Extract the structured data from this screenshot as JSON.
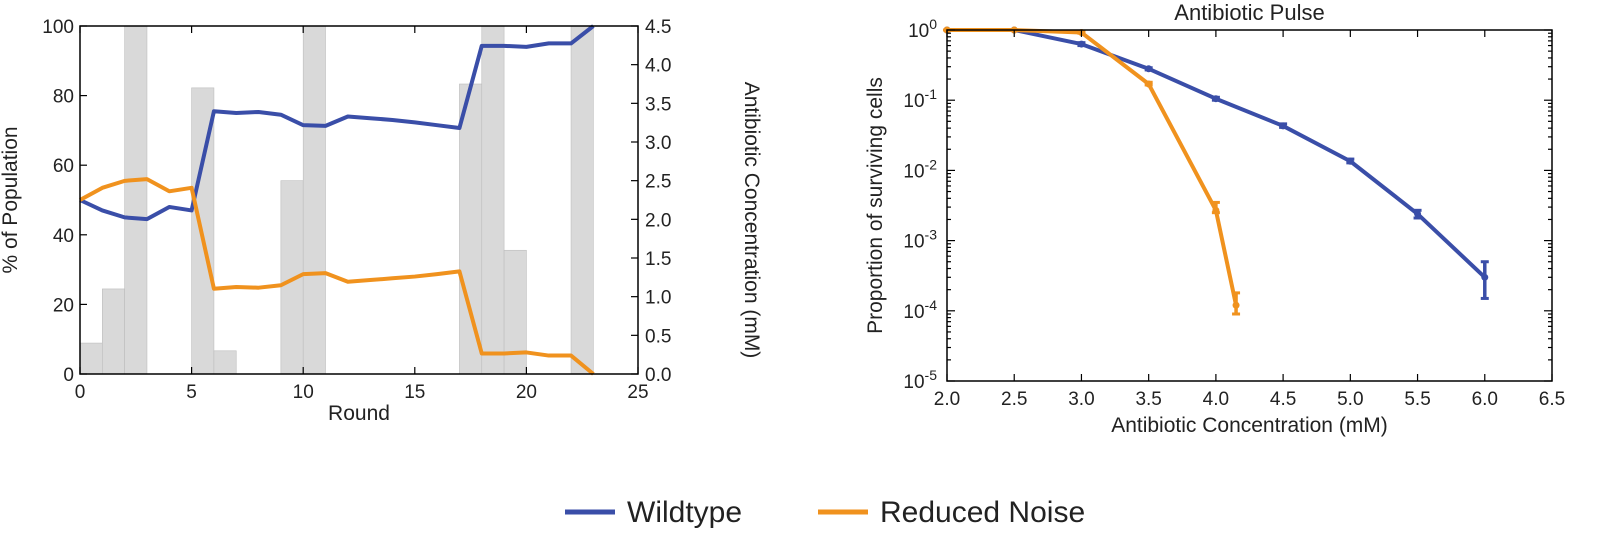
{
  "colors": {
    "wildtype": "#3a4ea8",
    "reduced_noise": "#f0921e",
    "bars": "#d9d9d9",
    "bar_edge": "#bdbdbd"
  },
  "legend": [
    {
      "name": "Wildtype",
      "color": "#3a4ea8"
    },
    {
      "name": "Reduced Noise",
      "color": "#f0921e"
    }
  ],
  "chart_data": [
    {
      "type": "line",
      "title": "",
      "xlabel": "Round",
      "ylabel": "% of Population",
      "y2label": "Antibiotic Concentration (mM)",
      "xlim": [
        0,
        25
      ],
      "ylim": [
        0,
        100
      ],
      "y2lim": [
        0,
        4.5
      ],
      "xticks": [
        "0",
        "5",
        "10",
        "15",
        "20",
        "25"
      ],
      "yticks": [
        "0",
        "20",
        "40",
        "60",
        "80",
        "100"
      ],
      "y2ticks": [
        "0.0",
        "0.5",
        "1.0",
        "1.5",
        "2.0",
        "2.5",
        "3.0",
        "3.5",
        "4.0",
        "4.5"
      ],
      "grid": false,
      "bars": {
        "axis": "y2",
        "rounds": [
          0,
          1,
          2,
          5,
          6,
          9,
          10,
          17,
          18,
          19,
          22
        ],
        "values": [
          0.4,
          1.1,
          4.5,
          3.7,
          0.3,
          2.5,
          4.5,
          3.75,
          4.5,
          1.6,
          4.5
        ]
      },
      "series": [
        {
          "name": "Wildtype",
          "x": [
            0,
            1,
            2,
            3,
            4,
            5,
            6,
            7,
            8,
            9,
            10,
            11,
            12,
            13,
            14,
            15,
            16,
            17,
            18,
            19,
            20,
            21,
            22,
            23
          ],
          "values": [
            50,
            47,
            45,
            44.5,
            48,
            47,
            75.5,
            75,
            75.3,
            74.5,
            71.5,
            71.3,
            74,
            73.5,
            73,
            72.3,
            71.5,
            70.7,
            94.3,
            94.3,
            94,
            95,
            95,
            100
          ]
        },
        {
          "name": "Reduced Noise",
          "x": [
            0,
            1,
            2,
            3,
            4,
            5,
            6,
            7,
            8,
            9,
            10,
            11,
            12,
            13,
            14,
            15,
            16,
            17,
            18,
            19,
            20,
            21,
            22,
            23
          ],
          "values": [
            50,
            53.5,
            55.5,
            56,
            52.5,
            53.5,
            24.5,
            25,
            24.8,
            25.5,
            28.7,
            29,
            26.5,
            27,
            27.5,
            28,
            28.7,
            29.5,
            5.9,
            5.9,
            6.2,
            5.3,
            5.3,
            0
          ]
        }
      ]
    },
    {
      "type": "line",
      "title": "Antibiotic Pulse",
      "xlabel": "Antibiotic Concentration (mM)",
      "ylabel": "Proportion of surviving cells",
      "yscale": "log",
      "xlim": [
        2.0,
        6.5
      ],
      "ylim": [
        1e-05,
        1
      ],
      "xticks": [
        "2.0",
        "2.5",
        "3.0",
        "3.5",
        "4.0",
        "4.5",
        "5.0",
        "5.5",
        "6.0",
        "6.5"
      ],
      "yticks": [
        {
          "base": "10",
          "exp": "0",
          "value": 1
        },
        {
          "base": "10",
          "exp": "-1",
          "value": 0.1
        },
        {
          "base": "10",
          "exp": "-2",
          "value": 0.01
        },
        {
          "base": "10",
          "exp": "-3",
          "value": 0.001
        },
        {
          "base": "10",
          "exp": "-4",
          "value": 0.0001
        },
        {
          "base": "10",
          "exp": "-5",
          "value": 1e-05
        }
      ],
      "grid": false,
      "series": [
        {
          "name": "Wildtype",
          "x": [
            2.0,
            2.5,
            3.0,
            3.5,
            4.0,
            4.5,
            5.0,
            5.5,
            6.0
          ],
          "values": [
            1.0,
            1.0,
            0.63,
            0.28,
            0.105,
            0.043,
            0.0135,
            0.0024,
            0.0003
          ],
          "err_low": [
            1.0,
            1.0,
            0.6,
            0.27,
            0.1,
            0.041,
            0.0128,
            0.0021,
            0.00015
          ],
          "err_high": [
            1.0,
            1.0,
            0.66,
            0.29,
            0.11,
            0.046,
            0.0145,
            0.0027,
            0.0005
          ]
        },
        {
          "name": "Reduced Noise",
          "x": [
            2.0,
            2.5,
            3.0,
            3.5,
            4.0,
            4.15
          ],
          "values": [
            1.0,
            1.0,
            0.92,
            0.17,
            0.0027,
            0.00012
          ],
          "err_low": [
            1.0,
            1.0,
            0.9,
            0.165,
            0.0025,
            9e-05
          ],
          "err_high": [
            1.0,
            1.0,
            0.94,
            0.18,
            0.0035,
            0.00018
          ]
        }
      ]
    }
  ]
}
